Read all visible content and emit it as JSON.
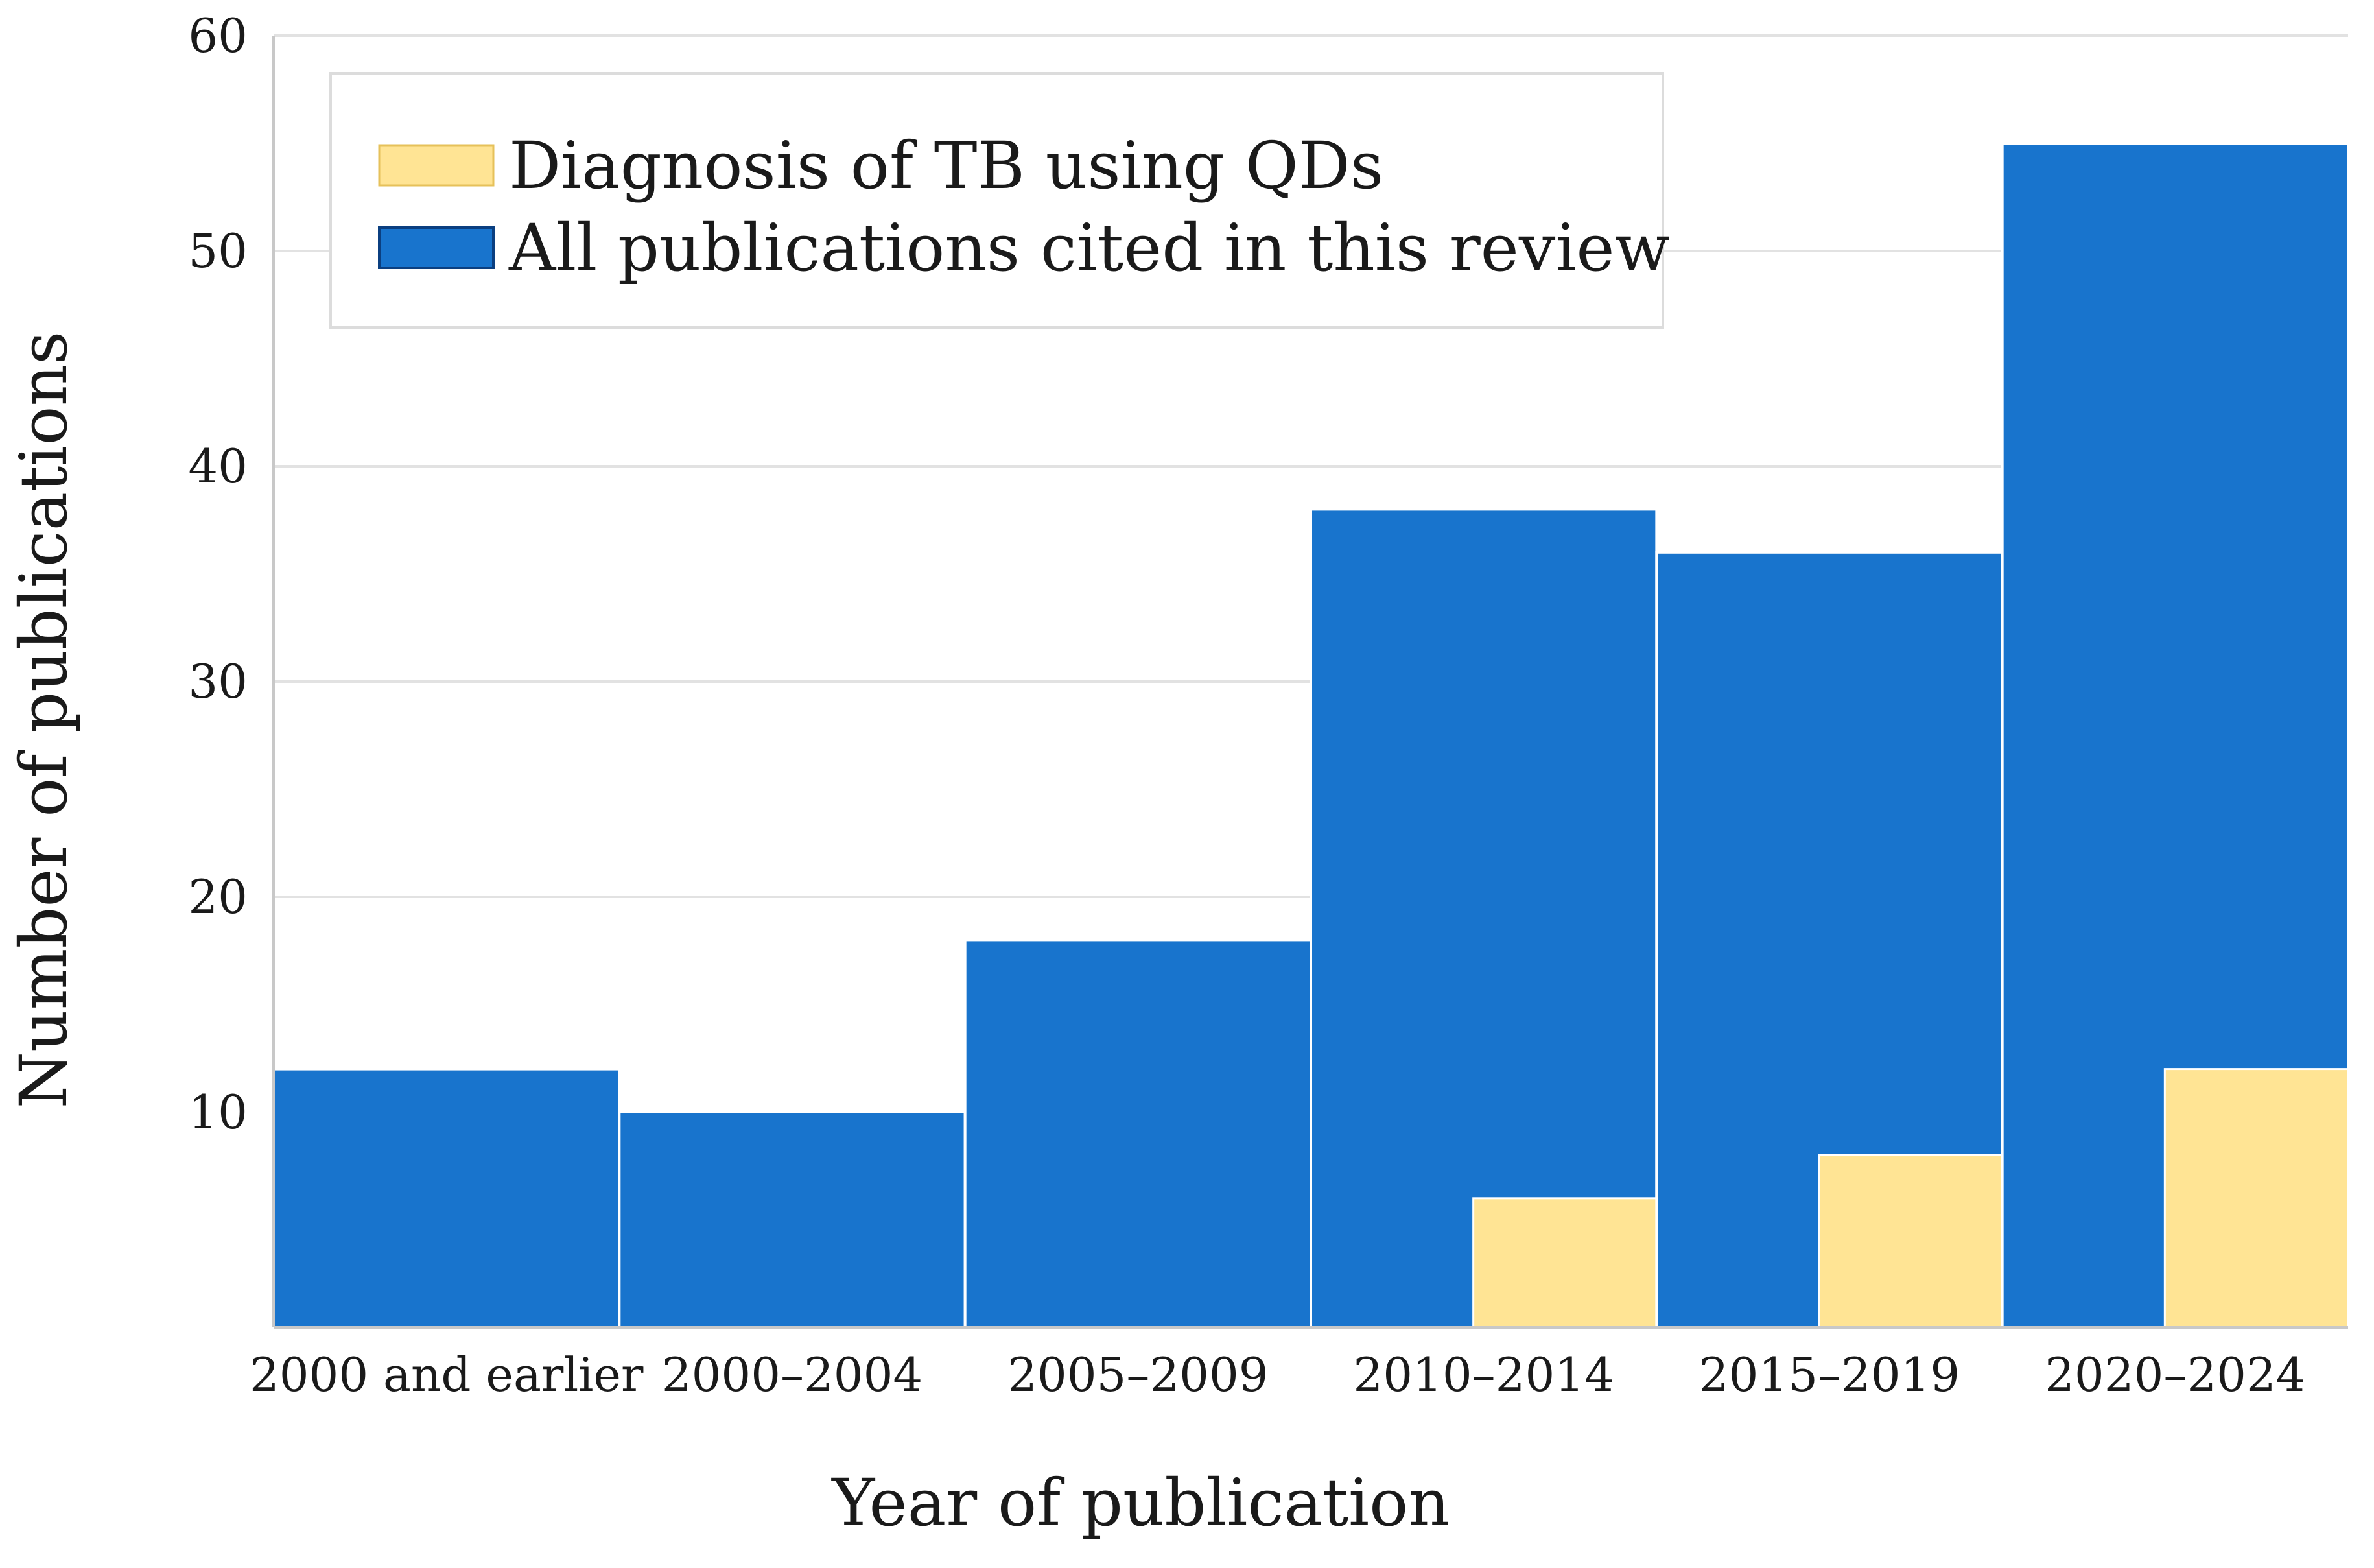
{
  "chart_data": {
    "type": "bar",
    "title": "",
    "xlabel": "Year of publication",
    "ylabel": "Number of publications",
    "ylim": [
      0,
      60
    ],
    "yticks": [
      10,
      20,
      30,
      40,
      50,
      60
    ],
    "grid": true,
    "legend_position": "top-left",
    "categories": [
      "2000 and earlier",
      "2000–2004",
      "2005–2009",
      "2010–2014",
      "2015–2019",
      "2020–2024"
    ],
    "series": [
      {
        "name": "All publications cited in this review",
        "color": "#1874CD",
        "values": [
          12,
          10,
          18,
          38,
          36,
          55
        ]
      },
      {
        "name": "Diagnosis of TB using QDs",
        "color": "#FFE494",
        "values": [
          0,
          0,
          0,
          6,
          8,
          12
        ]
      }
    ],
    "legend": [
      {
        "label": "Diagnosis of TB using QDs",
        "color": "#FFE494"
      },
      {
        "label": "All publications cited in this review",
        "color": "#1874CD"
      }
    ]
  }
}
